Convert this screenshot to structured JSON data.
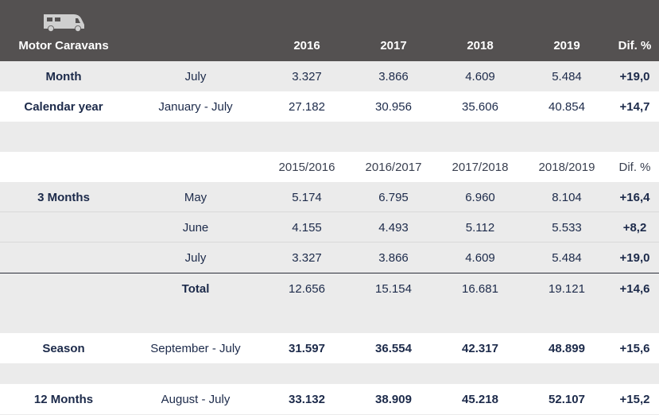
{
  "header": {
    "icon": "camper-van-icon",
    "label": "Motor Caravans",
    "years": [
      "2016",
      "2017",
      "2018",
      "2019"
    ],
    "dif": "Dif. %"
  },
  "rows": {
    "month": {
      "label": "Month",
      "period": "July",
      "values": [
        "3.327",
        "3.866",
        "4.609",
        "5.484"
      ],
      "dif": "+19,0"
    },
    "calendar": {
      "label": "Calendar year",
      "period": "January - July",
      "values": [
        "27.182",
        "30.956",
        "35.606",
        "40.854"
      ],
      "dif": "+14,7"
    },
    "seasons_header": {
      "values": [
        "2015/2016",
        "2016/2017",
        "2017/2018",
        "2018/2019"
      ],
      "dif": "Dif. %"
    },
    "may": {
      "label": "3 Months",
      "period": "May",
      "values": [
        "5.174",
        "6.795",
        "6.960",
        "8.104"
      ],
      "dif": "+16,4"
    },
    "june": {
      "period": "June",
      "values": [
        "4.155",
        "4.493",
        "5.112",
        "5.533"
      ],
      "dif": "+8,2"
    },
    "july": {
      "period": "July",
      "values": [
        "3.327",
        "3.866",
        "4.609",
        "5.484"
      ],
      "dif": "+19,0"
    },
    "total": {
      "period": "Total",
      "values": [
        "12.656",
        "15.154",
        "16.681",
        "19.121"
      ],
      "dif": "+14,6"
    },
    "season": {
      "label": "Season",
      "period": "September - July",
      "values": [
        "31.597",
        "36.554",
        "42.317",
        "48.899"
      ],
      "dif": "+15,6"
    },
    "twelve": {
      "label": "12 Months",
      "period": "August - July",
      "values": [
        "33.132",
        "38.909",
        "45.218",
        "52.107"
      ],
      "dif": "+15,2"
    }
  }
}
